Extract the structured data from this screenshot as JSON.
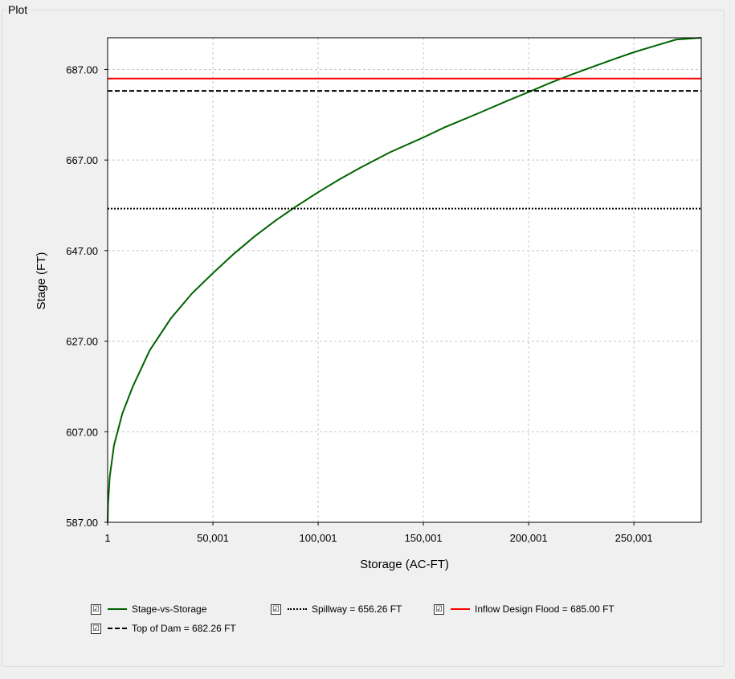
{
  "panel": {
    "title": "Plot"
  },
  "chart_data": {
    "type": "line",
    "xlabel": "Storage (AC-FT)",
    "ylabel": "Stage (FT)",
    "xlim": [
      1,
      282000
    ],
    "ylim": [
      587,
      694
    ],
    "x_ticks": [
      1,
      50001,
      100001,
      150001,
      200001,
      250001
    ],
    "x_tick_labels": [
      "1",
      "50,001",
      "100,001",
      "150,001",
      "200,001",
      "250,001"
    ],
    "y_ticks": [
      587,
      607,
      627,
      647,
      667,
      687
    ],
    "y_tick_labels": [
      "587.00",
      "607.00",
      "627.00",
      "647.00",
      "667.00",
      "687.00"
    ],
    "grid": true,
    "legend_position": "bottom",
    "series": [
      {
        "name": "Stage-vs-Storage",
        "color": "#006400",
        "style": "solid",
        "x": [
          1,
          200,
          1000,
          3000,
          7000,
          12000,
          20000,
          30000,
          40000,
          50000,
          60000,
          70000,
          80000,
          90000,
          100000,
          110000,
          120000,
          134000,
          150000,
          160000,
          177000,
          190000,
          200000,
          210000,
          220000,
          230000,
          240000,
          250000,
          260000,
          270000,
          282000
        ],
        "y": [
          587,
          591,
          597,
          604,
          611,
          617,
          625,
          632,
          637.5,
          642,
          646.3,
          650.2,
          653.7,
          656.9,
          659.9,
          662.7,
          665.3,
          668.7,
          672.0,
          674.2,
          677.5,
          680.1,
          682.0,
          684.0,
          685.8,
          687.5,
          689.2,
          690.8,
          692.2,
          693.6,
          695.0
        ]
      },
      {
        "name": "Spillway = 656.26 FT",
        "color": "#000000",
        "style": "dotted",
        "y_constant": 656.26
      },
      {
        "name": "Inflow Design Flood = 685.00 FT",
        "color": "#ff0000",
        "style": "solid",
        "y_constant": 685.0
      },
      {
        "name": "Top of Dam = 682.26 FT",
        "color": "#000000",
        "style": "dashed",
        "y_constant": 682.26
      }
    ]
  },
  "legend": {
    "check_glyph": "☑",
    "items": [
      {
        "label": "Stage-vs-Storage",
        "color": "#006400",
        "style": "solid"
      },
      {
        "label": "Spillway = 656.26 FT",
        "color": "#000000",
        "style": "dotted"
      },
      {
        "label": "Inflow Design Flood = 685.00 FT",
        "color": "#ff0000",
        "style": "solid"
      },
      {
        "label": "Top of Dam = 682.26 FT",
        "color": "#000000",
        "style": "dashed"
      }
    ]
  }
}
